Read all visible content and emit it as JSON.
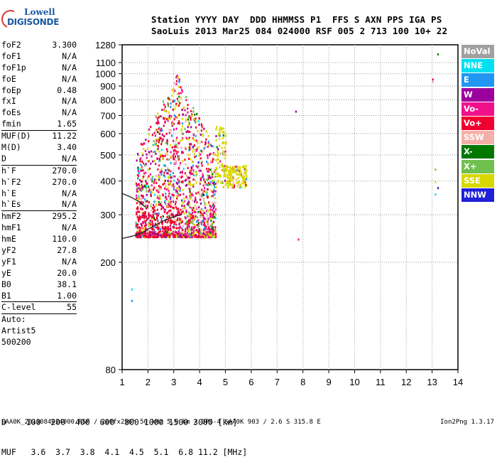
{
  "logo": {
    "line1": "Lowell",
    "line2": "DIGISONDE"
  },
  "header": {
    "row1": "Station YYYY DAY  DDD HHMMSS P1  FFS S AXN PPS IGA PS",
    "row2": "SaoLuis 2013 Mar25 084 024000 RSF 005 2 713 100 10+ 22"
  },
  "params": [
    {
      "label": "foF2",
      "value": "3.300",
      "sep": false
    },
    {
      "label": "foF1",
      "value": "N/A",
      "sep": false
    },
    {
      "label": "foF1p",
      "value": "N/A",
      "sep": false
    },
    {
      "label": "foE",
      "value": "N/A",
      "sep": false
    },
    {
      "label": "foEp",
      "value": "0.48",
      "sep": false
    },
    {
      "label": "fxI",
      "value": "N/A",
      "sep": false
    },
    {
      "label": "foEs",
      "value": "N/A",
      "sep": false
    },
    {
      "label": "fmin",
      "value": "1.65",
      "sep": false
    },
    {
      "label": "MUF(D)",
      "value": "11.22",
      "sep": true
    },
    {
      "label": "M(D)",
      "value": "3.40",
      "sep": false
    },
    {
      "label": "D",
      "value": "N/A",
      "sep": false
    },
    {
      "label": "h`F",
      "value": "270.0",
      "sep": true
    },
    {
      "label": "h`F2",
      "value": "270.0",
      "sep": false
    },
    {
      "label": "h`E",
      "value": "N/A",
      "sep": false
    },
    {
      "label": "h`Es",
      "value": "N/A",
      "sep": false
    },
    {
      "label": "hmF2",
      "value": "295.2",
      "sep": true
    },
    {
      "label": "hmF1",
      "value": "N/A",
      "sep": false
    },
    {
      "label": "hmE",
      "value": "110.0",
      "sep": false
    },
    {
      "label": "yF2",
      "value": "27.8",
      "sep": false
    },
    {
      "label": "yF1",
      "value": "N/A",
      "sep": false
    },
    {
      "label": "yE",
      "value": "20.0",
      "sep": false
    },
    {
      "label": "B0",
      "value": "38.1",
      "sep": false
    },
    {
      "label": "B1",
      "value": "1.00",
      "sep": false
    },
    {
      "label": "C-level",
      "value": "55",
      "sep": true
    },
    {
      "label": "Auto:",
      "value": "",
      "sep": true
    },
    {
      "label": "Artist5",
      "value": "",
      "sep": false
    },
    {
      "label": "500200",
      "value": "",
      "sep": false
    }
  ],
  "legend": [
    {
      "label": "NoVal",
      "color": "#a0a0a0"
    },
    {
      "label": "NNE",
      "color": "#00e0f0"
    },
    {
      "label": "E",
      "color": "#2196f3"
    },
    {
      "label": "W",
      "color": "#9c009c"
    },
    {
      "label": "Vo-",
      "color": "#f0108c"
    },
    {
      "label": "Vo+",
      "color": "#f00030"
    },
    {
      "label": "SSW",
      "color": "#f4b0a8"
    },
    {
      "label": "X-",
      "color": "#007800"
    },
    {
      "label": "X+",
      "color": "#70c050"
    },
    {
      "label": "SSE",
      "color": "#d8d800"
    },
    {
      "label": "NNW",
      "color": "#2020d8"
    }
  ],
  "footer": {
    "row1": "D    100  200  400  600  800 1000 1500 3000 [km]",
    "row2": "MUF   3.6  3.7  3.8  4.1  4.5  5.1  6.8 11.2 [MHz]",
    "file": "SAA0K_2013084024000.RSF / 260fx256h 50 kHz 5.0 km / DPS-4 SAA0K 903 / 2.6 S 315.8 E",
    "version": "Ion2Png 1.3.17"
  },
  "chart_data": {
    "type": "scatter",
    "title": "",
    "xlabel": "",
    "ylabel": "",
    "xlim": [
      1,
      14
    ],
    "ylim": [
      80,
      1280
    ],
    "yscale": "log",
    "xticks": [
      "1",
      "2",
      "3",
      "4",
      "5",
      "6",
      "7",
      "8",
      "9",
      "10",
      "11",
      "12",
      "13",
      "14"
    ],
    "yticks": [
      "80",
      "200",
      "300",
      "400",
      "500",
      "600",
      "700",
      "800",
      "900",
      "1000",
      "1100",
      "1280"
    ],
    "ytick_values": [
      80,
      200,
      300,
      400,
      500,
      600,
      700,
      800,
      900,
      1000,
      1100,
      1280
    ],
    "grid": true,
    "clusters": [
      {
        "name": "F-layer echo cloud",
        "xmin": 1.5,
        "xmax": 4.6,
        "ymin": 250,
        "ymax": 1000
      },
      {
        "name": "SSE high-range",
        "xmin": 4.6,
        "xmax": 5.8,
        "ymin": 380,
        "ymax": 820
      }
    ],
    "trace": {
      "x": [
        1.0,
        1.4,
        1.8,
        2.2,
        2.6,
        3.0,
        3.3
      ],
      "y": [
        245,
        250,
        258,
        272,
        285,
        295,
        300
      ]
    },
    "trace2": {
      "x": [
        1.0,
        1.3,
        1.6,
        1.9
      ],
      "y": [
        360,
        350,
        338,
        320
      ]
    },
    "isolated_points": [
      {
        "x": 1.35,
        "y": 160
      },
      {
        "x": 1.35,
        "y": 145
      },
      {
        "x": 7.7,
        "y": 730
      },
      {
        "x": 7.8,
        "y": 245
      },
      {
        "x": 13.0,
        "y": 960
      },
      {
        "x": 13.0,
        "y": 940
      },
      {
        "x": 13.2,
        "y": 1190
      },
      {
        "x": 13.1,
        "y": 445
      },
      {
        "x": 13.1,
        "y": 400
      },
      {
        "x": 13.2,
        "y": 380
      },
      {
        "x": 13.1,
        "y": 360
      }
    ]
  }
}
